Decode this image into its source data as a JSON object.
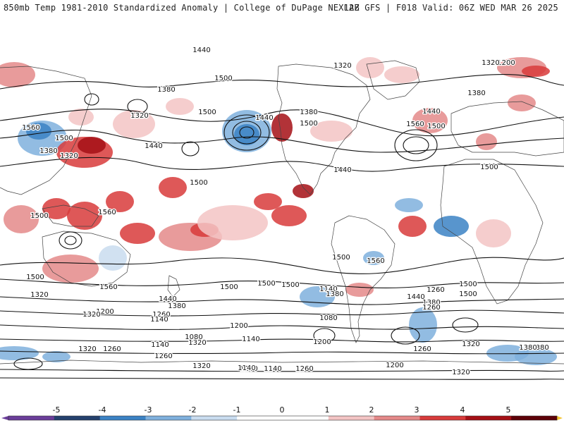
{
  "header": {
    "title_left": "850mb Temp 1981-2010 Standardized Anomaly | College of DuPage NEXLAB",
    "title_right": "12Z GFS | F018 Valid: 06Z WED MAR 26 2025"
  },
  "colors": {
    "neg5": "#6a3d9a",
    "neg4": "#24406d",
    "neg3": "#3b82c4",
    "neg2": "#7fb0dd",
    "neg1": "#c9dcef",
    "zero": "#ffffff",
    "pos1": "#f3c4c4",
    "pos2": "#e48989",
    "pos3": "#d83b3b",
    "pos4": "#a50f15",
    "pos5": "#5e0008",
    "pos_end": "#f4c430",
    "contour": "#111111",
    "border": "#222222"
  },
  "colorbar": {
    "ticks": [
      "-5",
      "-4",
      "-3",
      "-2",
      "-1",
      "0",
      "1",
      "2",
      "3",
      "4",
      "5"
    ]
  },
  "contour_labels": [
    "1440",
    "1500",
    "1380",
    "1320",
    "1500",
    "1500",
    "1440",
    "1440",
    "1560",
    "1500",
    "1380",
    "1320",
    "1320",
    "1500",
    "1560",
    "1500",
    "1380",
    "1320",
    "1440",
    "1380",
    "1200",
    "1320",
    "1560",
    "1500",
    "1440",
    "1500",
    "1500",
    "1560",
    "1500",
    "1500",
    "1500",
    "1560",
    "1500",
    "1500",
    "1500",
    "1440",
    "1380",
    "1320",
    "1260",
    "1140",
    "1380",
    "1200",
    "1320",
    "1260",
    "1440",
    "1380",
    "1260",
    "1140",
    "1200",
    "1320",
    "1080",
    "1140",
    "1320",
    "1260",
    "1140",
    "1260",
    "1200",
    "1080",
    "1260",
    "1320",
    "1380",
    "1380",
    "1200",
    "1140",
    "1260",
    "1140",
    "1200",
    "1320",
    "1320"
  ]
}
